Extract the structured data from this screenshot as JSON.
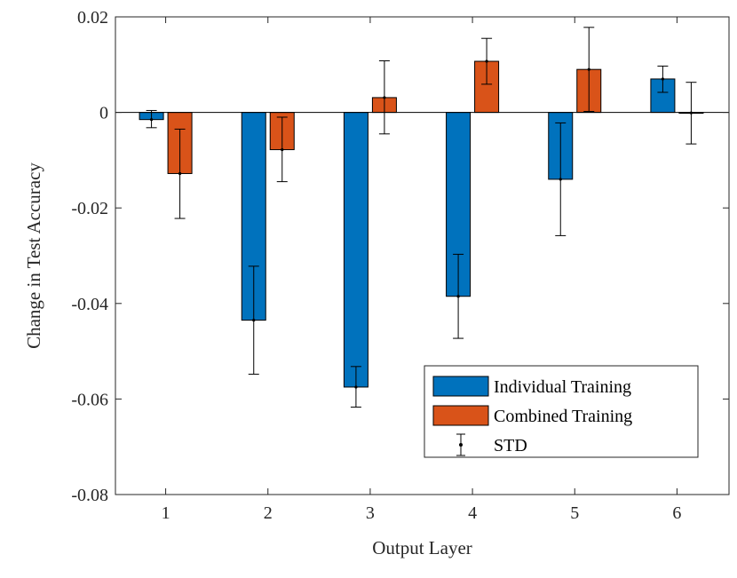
{
  "chart_data": {
    "type": "bar",
    "title": "",
    "xlabel": "Output Layer",
    "ylabel": "Change in Test Accuracy",
    "categories": [
      "1",
      "2",
      "3",
      "4",
      "5",
      "6"
    ],
    "ylim": [
      -0.08,
      0.02
    ],
    "yticks": [
      0.02,
      0,
      -0.02,
      -0.04,
      -0.06,
      -0.08
    ],
    "ytick_labels": [
      "0.02",
      "0",
      "-0.02",
      "-0.04",
      "-0.06",
      "-0.08"
    ],
    "grid": false,
    "legend_position": "bottom-right",
    "series": [
      {
        "name": "Individual Training",
        "color": "#0072BD",
        "values": [
          -0.0015,
          -0.0435,
          -0.0575,
          -0.0385,
          -0.014,
          0.007
        ],
        "err_low": [
          -0.0032,
          -0.0548,
          -0.0617,
          -0.0473,
          -0.0258,
          0.0042
        ],
        "err_high": [
          0.0004,
          -0.0322,
          -0.0532,
          -0.0297,
          -0.0022,
          0.0097
        ]
      },
      {
        "name": "Combined Training",
        "color": "#D95319",
        "values": [
          -0.0128,
          -0.0078,
          0.0031,
          0.0107,
          0.009,
          -0.0001
        ],
        "err_low": [
          -0.0222,
          -0.0145,
          -0.0045,
          0.0059,
          0.0002,
          -0.0066
        ],
        "err_high": [
          -0.0035,
          -0.001,
          0.0108,
          0.0155,
          0.0178,
          0.0063
        ]
      }
    ],
    "legend": [
      {
        "label": "Individual Training",
        "kind": "bar",
        "color": "#0072BD"
      },
      {
        "label": "Combined Training",
        "kind": "bar",
        "color": "#D95319"
      },
      {
        "label": "STD",
        "kind": "errorbar",
        "color": "#000000"
      }
    ]
  }
}
